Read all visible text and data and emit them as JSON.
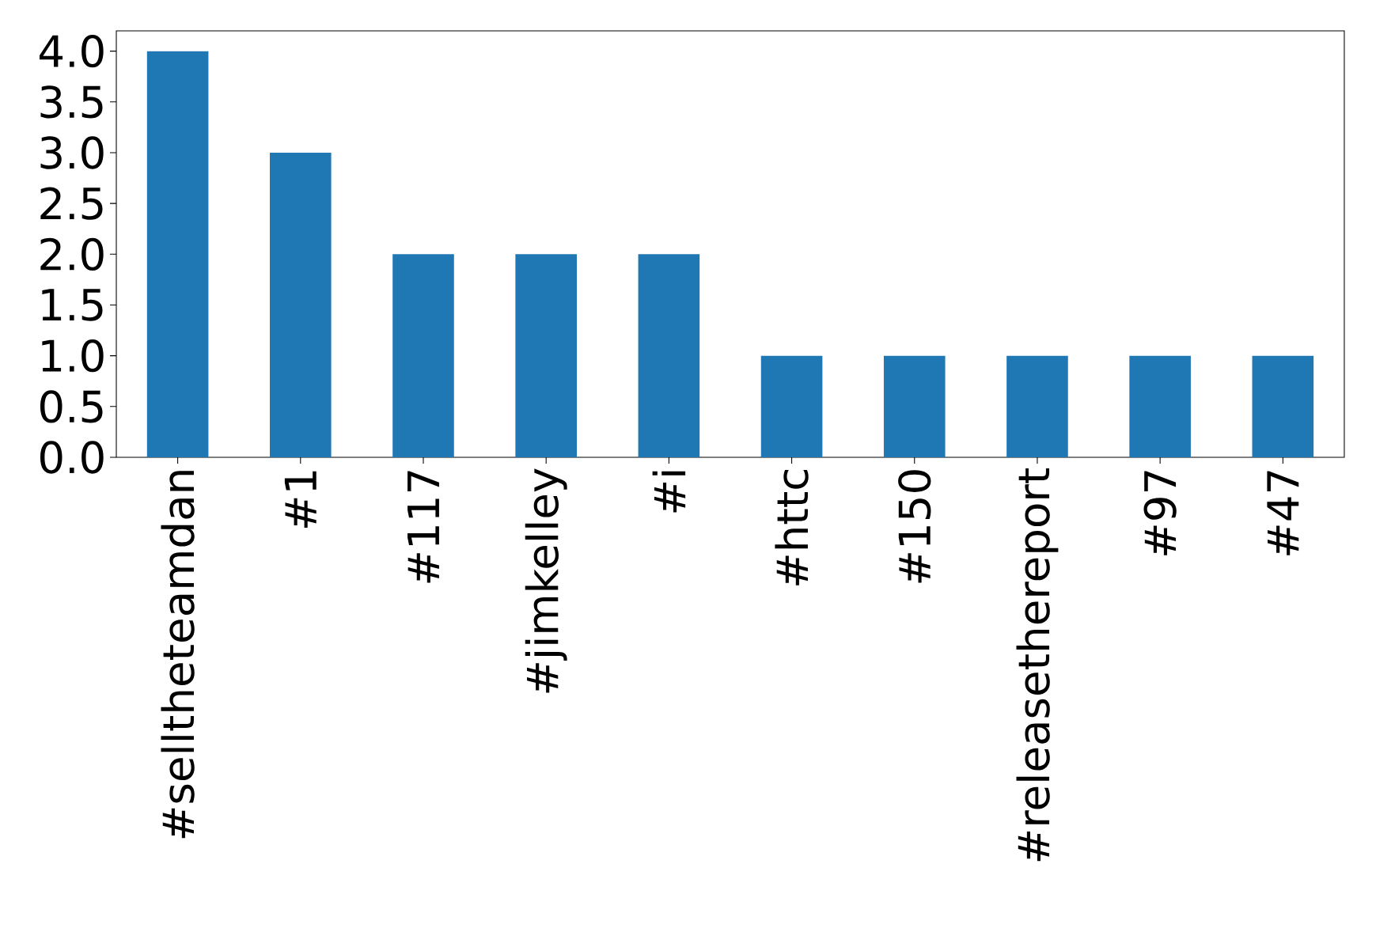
{
  "chart_data": {
    "type": "bar",
    "categories": [
      "#selltheteamdan",
      "#1",
      "#117",
      "#jimkelley",
      "#i",
      "#httc",
      "#150",
      "#releasethereport",
      "#97",
      "#47"
    ],
    "values": [
      4,
      3,
      2,
      2,
      2,
      1,
      1,
      1,
      1,
      1
    ],
    "color": "#1f77b4",
    "ylim": [
      0,
      4.2
    ],
    "yticks": [
      {
        "value": 0,
        "label": "0.0"
      },
      {
        "value": 0.5,
        "label": "0.5"
      },
      {
        "value": 1,
        "label": "1.0"
      },
      {
        "value": 1.5,
        "label": "1.5"
      },
      {
        "value": 2,
        "label": "2.0"
      },
      {
        "value": 2.5,
        "label": "2.5"
      },
      {
        "value": 3,
        "label": "3.0"
      },
      {
        "value": 3.5,
        "label": "3.5"
      },
      {
        "value": 4,
        "label": "4.0"
      }
    ],
    "grid": false
  }
}
